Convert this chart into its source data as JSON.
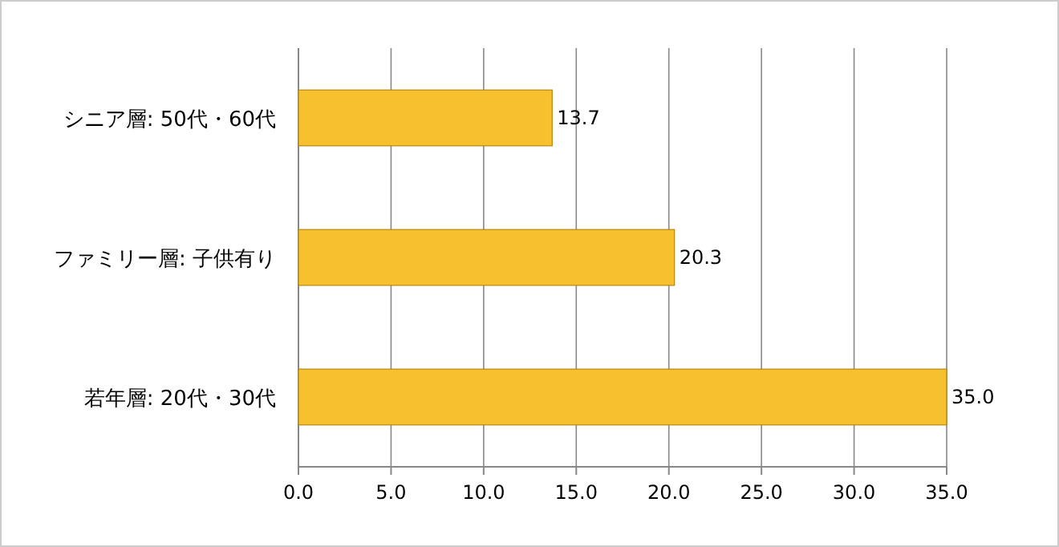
{
  "chart_data": {
    "type": "bar",
    "orientation": "horizontal",
    "categories": [
      "シニア層: 50代・60代",
      "ファミリー層: 子供有り",
      "若年層: 20代・30代"
    ],
    "values": [
      13.7,
      20.3,
      35.0
    ],
    "color": "#f7c02e",
    "value_labels": [
      "13.7",
      "20.3",
      "35.0"
    ],
    "xlim": [
      0,
      35
    ],
    "xticks": [
      {
        "value": 0,
        "label": "0.0"
      },
      {
        "value": 5,
        "label": "5.0"
      },
      {
        "value": 10,
        "label": "10.0"
      },
      {
        "value": 15,
        "label": "15.0"
      },
      {
        "value": 20,
        "label": "20.0"
      },
      {
        "value": 25,
        "label": "25.0"
      },
      {
        "value": 30,
        "label": "30.0"
      },
      {
        "value": 35,
        "label": "35.0"
      }
    ],
    "grid": "x"
  }
}
